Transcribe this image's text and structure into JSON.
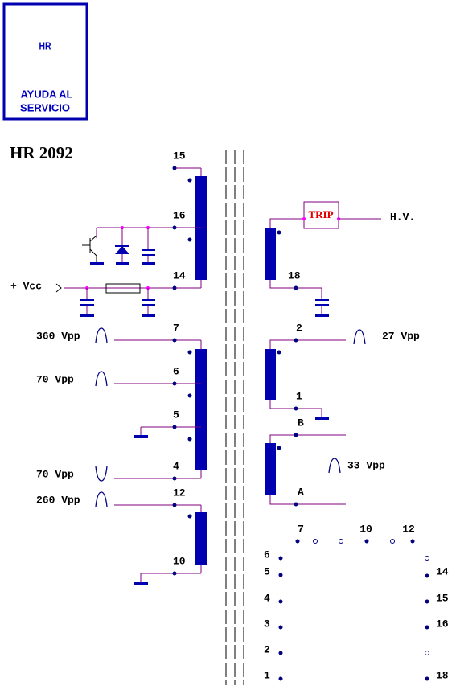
{
  "logo": {
    "title": "HR",
    "line1": "AYUDA AL",
    "line2": "SERVICIO"
  },
  "model": "HR 2092",
  "supply": "+ Vcc",
  "primary_pins": [
    "15",
    "16",
    "14",
    "7",
    "6",
    "5",
    "4",
    "12",
    "10"
  ],
  "primary_signals": [
    "360 Vpp",
    "70 Vpp",
    "70 Vpp",
    "260 Vpp"
  ],
  "secondary": {
    "trip": "TRIP",
    "output": "H.V.",
    "pins": [
      "18",
      "2",
      "1",
      "B",
      "A"
    ],
    "signals": [
      "27 Vpp",
      "33 Vpp"
    ]
  },
  "pinout": {
    "top": [
      "7",
      "10",
      "12"
    ],
    "left": [
      "6",
      "5",
      "4",
      "3",
      "2",
      "1"
    ],
    "right": [
      "14",
      "15",
      "16",
      "18"
    ]
  }
}
